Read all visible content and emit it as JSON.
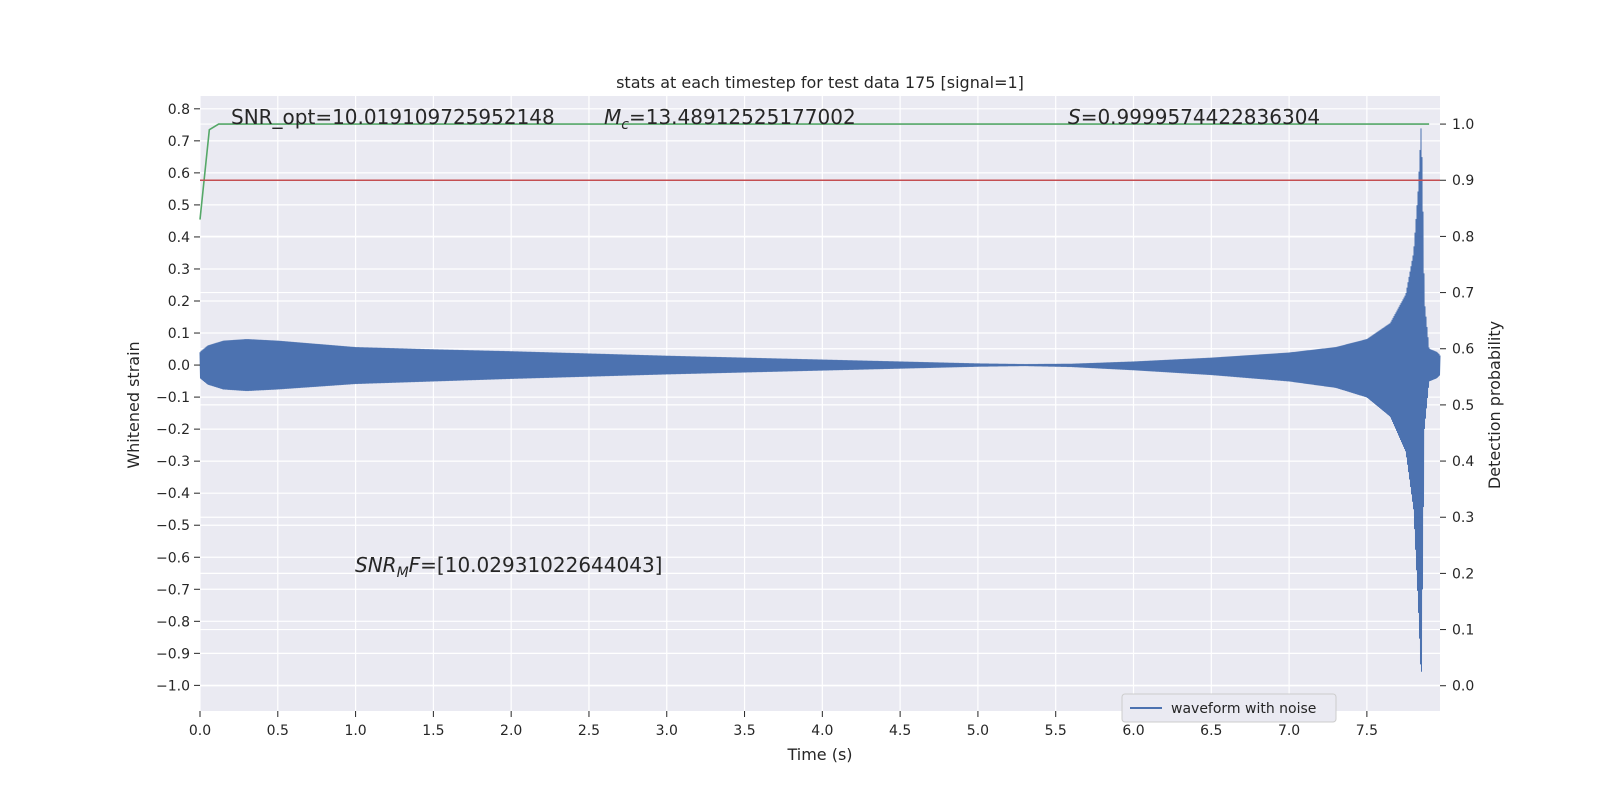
{
  "chart_data": {
    "type": "line",
    "title": "stats at each timestep for test data 175 [signal=1]",
    "xlabel": "Time (s)",
    "ylabel_left": "Whitened strain",
    "ylabel_right": "Detection probability",
    "xlim": [
      0.0,
      7.97
    ],
    "ylim_left": [
      -1.08,
      0.84
    ],
    "ylim_right": [
      -0.045,
      1.05
    ],
    "x_ticks": [
      0.0,
      0.5,
      1.0,
      1.5,
      2.0,
      2.5,
      3.0,
      3.5,
      4.0,
      4.5,
      5.0,
      5.5,
      6.0,
      6.5,
      7.0,
      7.5
    ],
    "x_tick_labels": [
      "0.0",
      "0.5",
      "1.0",
      "1.5",
      "2.0",
      "2.5",
      "3.0",
      "3.5",
      "4.0",
      "4.5",
      "5.0",
      "5.5",
      "6.0",
      "6.5",
      "7.0",
      "7.5"
    ],
    "y_left_ticks": [
      0.8,
      0.7,
      0.6,
      0.5,
      0.4,
      0.3,
      0.2,
      0.1,
      0.0,
      -0.1,
      -0.2,
      -0.3,
      -0.4,
      -0.5,
      -0.6,
      -0.7,
      -0.8,
      -0.9,
      -1.0
    ],
    "y_left_tick_labels": [
      "0.8",
      "0.7",
      "0.6",
      "0.5",
      "0.4",
      "0.3",
      "0.2",
      "0.1",
      "0.0",
      "−0.1",
      "−0.2",
      "−0.3",
      "−0.4",
      "−0.5",
      "−0.6",
      "−0.7",
      "−0.8",
      "−0.9",
      "−1.0"
    ],
    "y_right_ticks": [
      1.0,
      0.9,
      0.8,
      0.7,
      0.6,
      0.5,
      0.4,
      0.3,
      0.2,
      0.1,
      0.0
    ],
    "y_right_tick_labels": [
      "1.0",
      "0.9",
      "0.8",
      "0.7",
      "0.6",
      "0.5",
      "0.4",
      "0.3",
      "0.2",
      "0.1",
      "0.0"
    ],
    "grid": true,
    "legend_position": "lower-right",
    "series": [
      {
        "name": "waveform with noise",
        "axis": "left",
        "color": "#4c72b0",
        "style": "filled-oscillation",
        "envelope_x": [
          0.0,
          0.05,
          0.15,
          0.3,
          0.5,
          1.0,
          1.5,
          2.0,
          2.5,
          3.0,
          3.5,
          4.0,
          4.5,
          5.0,
          5.3,
          5.6,
          6.0,
          6.5,
          7.0,
          7.3,
          7.5,
          7.65,
          7.75,
          7.8,
          7.83,
          7.85,
          7.86,
          7.87,
          7.9,
          7.95,
          7.97
        ],
        "envelope_upper": [
          0.04,
          0.06,
          0.075,
          0.08,
          0.075,
          0.055,
          0.048,
          0.042,
          0.035,
          0.028,
          0.022,
          0.016,
          0.01,
          0.004,
          0.002,
          0.003,
          0.01,
          0.022,
          0.038,
          0.055,
          0.08,
          0.13,
          0.22,
          0.35,
          0.55,
          0.76,
          0.5,
          0.2,
          0.05,
          0.04,
          0.03
        ],
        "envelope_lower": [
          -0.04,
          -0.06,
          -0.075,
          -0.08,
          -0.075,
          -0.058,
          -0.05,
          -0.042,
          -0.035,
          -0.028,
          -0.022,
          -0.016,
          -0.01,
          -0.004,
          -0.002,
          -0.005,
          -0.015,
          -0.03,
          -0.05,
          -0.07,
          -0.1,
          -0.16,
          -0.27,
          -0.45,
          -0.75,
          -1.0,
          -0.6,
          -0.2,
          -0.05,
          -0.04,
          -0.03
        ]
      },
      {
        "name": "",
        "axis": "right",
        "color": "#55a868",
        "style": "line",
        "x": [
          0.0,
          0.06,
          0.12,
          7.9
        ],
        "y": [
          0.83,
          0.99,
          1.0,
          1.0
        ]
      },
      {
        "name": "",
        "axis": "right",
        "color": "#c44e52",
        "style": "line",
        "x": [
          0.0,
          7.97
        ],
        "y": [
          0.9,
          0.9
        ]
      }
    ],
    "annotations": {
      "snr_opt": "SNR_opt=10.019109725952148",
      "mc_symbol": "M",
      "mc_subscript": "c",
      "mc_value": "=13.48912525177002",
      "s_symbol": "S",
      "s_value": "=0.9999574422836304",
      "snrmf_symbol": "SNR",
      "snrmf_subscript": "M",
      "snrmf_suffix": "F",
      "snrmf_value": "=[10.02931022644043]"
    }
  }
}
